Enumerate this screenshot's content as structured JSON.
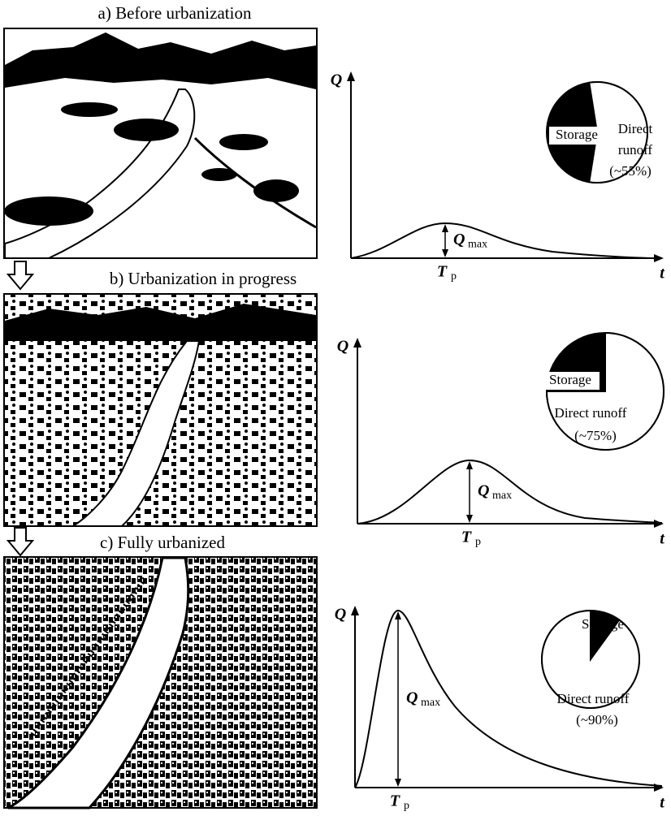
{
  "panels": [
    {
      "caption": "a) Before urbanization",
      "hydrograph": {
        "y_label": "Q",
        "x_label": "t",
        "peak_time_label": "T",
        "peak_time_subscript": "p",
        "peak_label": "Q",
        "peak_subscript": "max"
      },
      "pie": {
        "storage_label": "Storage",
        "runoff_label_lines": [
          "Direct",
          "runoff"
        ],
        "runoff_value_label": "(~55%)",
        "runoff_percent": 55
      }
    },
    {
      "caption": "b) Urbanization in progress",
      "hydrograph": {
        "y_label": "Q",
        "x_label": "t",
        "peak_time_label": "T",
        "peak_time_subscript": "p",
        "peak_label": "Q",
        "peak_subscript": "max"
      },
      "pie": {
        "storage_label": "Storage",
        "runoff_label_lines": [
          "Direct runoff"
        ],
        "runoff_value_label": "(~75%)",
        "runoff_percent": 75
      }
    },
    {
      "caption": "c) Fully urbanized",
      "hydrograph": {
        "y_label": "Q",
        "x_label": "t",
        "peak_time_label": "T",
        "peak_time_subscript": "p",
        "peak_label": "Q",
        "peak_subscript": "max"
      },
      "pie": {
        "storage_label": "Storage",
        "runoff_label_lines": [
          "Direct runoff"
        ],
        "runoff_value_label": "(~90%)",
        "runoff_percent": 90
      }
    }
  ]
}
